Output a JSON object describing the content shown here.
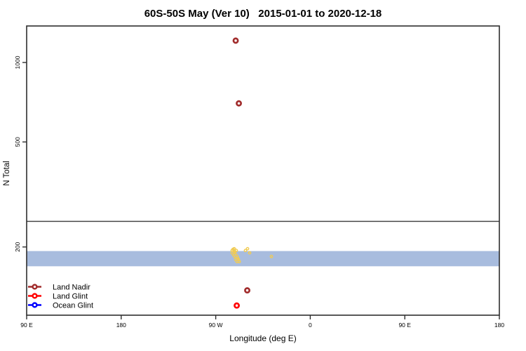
{
  "title": "60S-50S May (Ver 10)   2015-01-01 to 2020-12-18",
  "axes": {
    "x_label": "Longitude (deg E)",
    "y_label": "N Total",
    "x_ticks": [
      {
        "label": "90 E",
        "deg_e": 90
      },
      {
        "label": "180",
        "deg_e": 180
      },
      {
        "label": "90 W",
        "deg_e": 270
      },
      {
        "label": "0",
        "deg_e": 360
      },
      {
        "label": "90 E",
        "deg_e": 450
      },
      {
        "label": "180",
        "deg_e": 540
      }
    ],
    "y_ticks": [
      {
        "label": "1000",
        "value": 1000
      },
      {
        "label": "500",
        "value": 500
      },
      {
        "label": "200",
        "value": 200
      }
    ],
    "x_domain_deg_e": [
      90,
      540
    ],
    "y_scale": "log10"
  },
  "legend": {
    "position": "bottom-left",
    "items": [
      {
        "label": "Land Nadir",
        "color": "#A12C2C"
      },
      {
        "label": "Land Glint",
        "color": "#FF0000"
      },
      {
        "label": "Ocean Glint",
        "color": "#0000FF"
      }
    ]
  },
  "chart_data": {
    "type": "scatter",
    "title": "60S-50S May (Ver 10)   2015-01-01 to 2020-12-18",
    "xlabel": "Longitude (deg E)",
    "ylabel": "N Total",
    "x_domain_deg_e": [
      90,
      540
    ],
    "y_scale": "log10",
    "grid": false,
    "legend_position": "bottom-left",
    "series": [
      {
        "name": "Land Nadir",
        "color": "#A12C2C",
        "marker": "open-circle",
        "points": [
          {
            "lon_deg_e": 289,
            "n": 1210
          },
          {
            "lon_deg_e": 292,
            "n": 700
          },
          {
            "lon_deg_e": 300,
            "n": 137
          }
        ]
      },
      {
        "name": "Land Glint",
        "color": "#FF0000",
        "marker": "open-circle",
        "points": [
          {
            "lon_deg_e": 290,
            "n": 120
          }
        ]
      },
      {
        "name": "Ocean Glint",
        "color": "#0000FF",
        "marker": "open-circle",
        "points": []
      }
    ],
    "ocean_band": {
      "color": "#A8BCDE",
      "lon_range_deg_e": [
        90,
        540
      ],
      "n_range": [
        169,
        193
      ],
      "note": "dense uniform band of values across all longitudes"
    },
    "threshold_line": {
      "n": 250,
      "color": "#474747"
    },
    "unlabeled_yellow_points": {
      "color": "#F0CB55",
      "points": [
        [
          285.6,
          194
        ],
        [
          287.6,
          197
        ],
        [
          289.6,
          194
        ],
        [
          286.5,
          196
        ],
        [
          288.3,
          192
        ],
        [
          285.6,
          190
        ],
        [
          287.6,
          190
        ],
        [
          286.9,
          187
        ],
        [
          289.0,
          187
        ],
        [
          288.0,
          184
        ],
        [
          290.3,
          184
        ],
        [
          291.0,
          181
        ],
        [
          291.7,
          179
        ],
        [
          292.4,
          176
        ],
        [
          290.3,
          176
        ],
        [
          289.0,
          179
        ],
        [
          298.3,
          194
        ],
        [
          300.3,
          197
        ],
        [
          302.3,
          190
        ],
        [
          323.0,
          184
        ]
      ]
    }
  }
}
